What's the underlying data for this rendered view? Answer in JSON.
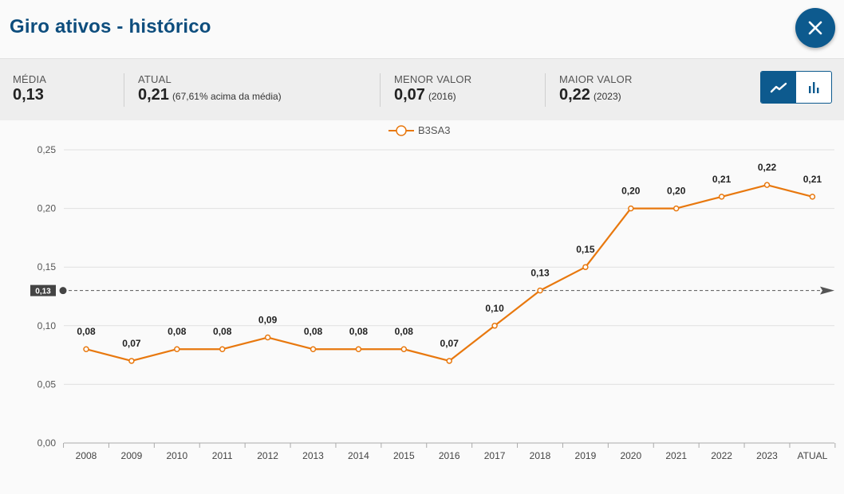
{
  "header": {
    "title": "Giro ativos - histórico"
  },
  "stats": {
    "media": {
      "label": "MÉDIA",
      "value": "0,13"
    },
    "atual": {
      "label": "ATUAL",
      "value": "0,21",
      "note": "(67,61% acima da média)"
    },
    "menor": {
      "label": "MENOR VALOR",
      "value": "0,07",
      "note": "(2016)"
    },
    "maior": {
      "label": "MAIOR VALOR",
      "value": "0,22",
      "note": "(2023)"
    }
  },
  "colors": {
    "line": "#e8780e",
    "accent": "#0d5a8e",
    "title": "#0d4d7d"
  },
  "chart_data": {
    "type": "line",
    "legend": "B3SA3",
    "categories": [
      "2008",
      "2009",
      "2010",
      "2011",
      "2012",
      "2013",
      "2014",
      "2015",
      "2016",
      "2017",
      "2018",
      "2019",
      "2020",
      "2021",
      "2022",
      "2023",
      "ATUAL"
    ],
    "series": [
      {
        "name": "B3SA3",
        "values": [
          0.08,
          0.07,
          0.08,
          0.08,
          0.09,
          0.08,
          0.08,
          0.08,
          0.07,
          0.1,
          0.13,
          0.15,
          0.2,
          0.2,
          0.21,
          0.22,
          0.21
        ],
        "labels": [
          "0,08",
          "0,07",
          "0,08",
          "0,08",
          "0,09",
          "0,08",
          "0,08",
          "0,08",
          "0,07",
          "0,10",
          "0,13",
          "0,15",
          "0,20",
          "0,20",
          "0,21",
          "0,22",
          "0,21"
        ]
      }
    ],
    "ylim": [
      0,
      0.25
    ],
    "yticks": [
      0,
      0.05,
      0.1,
      0.15,
      0.2,
      0.25
    ],
    "ytick_labels": [
      "0,00",
      "0,05",
      "0,10",
      "0,15",
      "0,20",
      "0,25"
    ],
    "average": {
      "value": 0.13,
      "label": "0,13"
    },
    "grid": true
  }
}
